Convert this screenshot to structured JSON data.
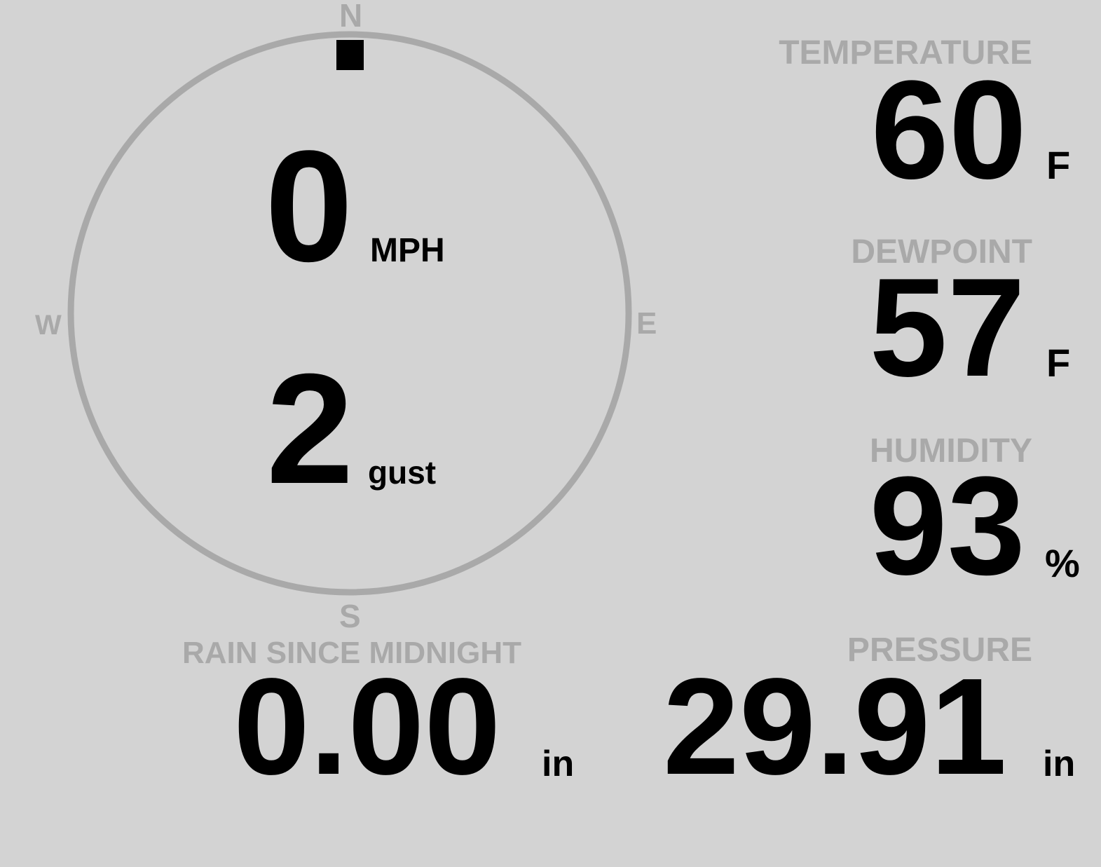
{
  "wind": {
    "speed": "0",
    "speed_unit": "MPH",
    "gust": "2",
    "gust_unit": "gust",
    "direction_degrees": 0,
    "compass": {
      "n": "N",
      "e": "E",
      "s": "S",
      "w": "W"
    },
    "ring_color": "#a9a9a9",
    "marker_color": "#000000"
  },
  "temperature": {
    "label": "TEMPERATURE",
    "value": "60",
    "unit": "F"
  },
  "dewpoint": {
    "label": "DEWPOINT",
    "value": "57",
    "unit": "F"
  },
  "humidity": {
    "label": "HUMIDITY",
    "value": "93",
    "unit": "%"
  },
  "rain": {
    "label": "RAIN SINCE MIDNIGHT",
    "value": "0.00",
    "unit": "in"
  },
  "pressure": {
    "label": "PRESSURE",
    "value": "29.91",
    "unit": "in"
  },
  "colors": {
    "background": "#d3d3d3",
    "label": "#a9a9a9",
    "value": "#000000"
  }
}
